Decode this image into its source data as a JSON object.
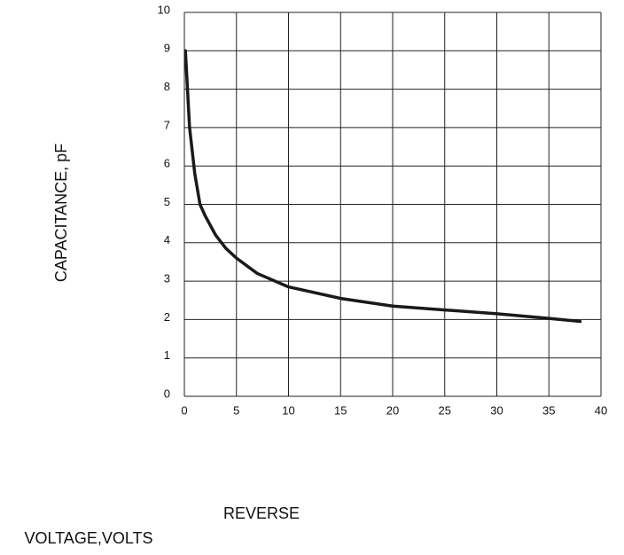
{
  "chart_data": {
    "type": "line",
    "ylabel": "CAPACITANCE, pF",
    "xlabel_lines": [
      "REVERSE",
      "VOLTAGE,VOLTS"
    ],
    "x": [
      0.1,
      0.5,
      1,
      1.5,
      2,
      3,
      4,
      5,
      7,
      10,
      15,
      20,
      25,
      30,
      35,
      38
    ],
    "series": [
      {
        "color": "#1a1a1a",
        "values": [
          9.0,
          7.0,
          5.8,
          5.0,
          4.7,
          4.2,
          3.85,
          3.6,
          3.2,
          2.85,
          2.55,
          2.35,
          2.25,
          2.15,
          2.03,
          1.95
        ]
      }
    ],
    "xlim": [
      0,
      40
    ],
    "xticks": [
      0,
      5,
      10,
      15,
      20,
      25,
      30,
      35,
      40
    ],
    "ylim": [
      0,
      10
    ],
    "yticks": [
      0,
      1,
      2,
      3,
      4,
      5,
      6,
      7,
      8,
      9,
      10
    ],
    "grid": true
  }
}
